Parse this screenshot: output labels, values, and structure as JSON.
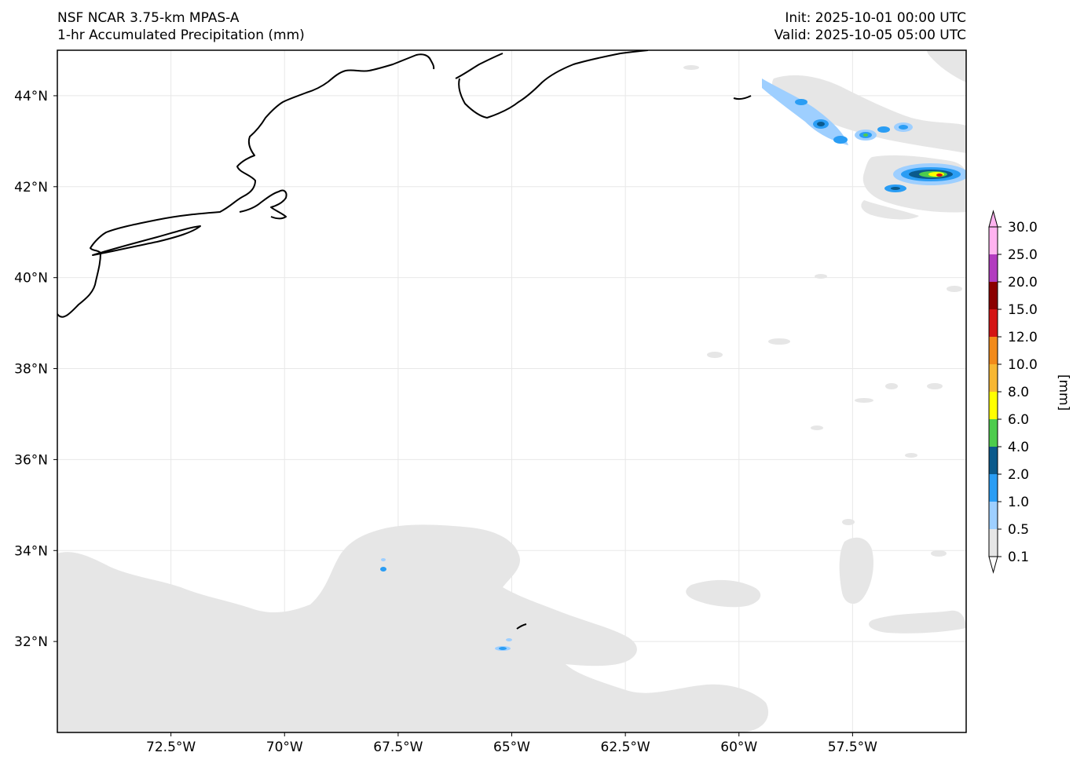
{
  "header": {
    "left_line1": "NSF NCAR 3.75-km MPAS-A",
    "left_line2": "1-hr Accumulated Precipitation (mm)",
    "right_line1": "Init: 2025-10-01 00:00 UTC",
    "right_line2": "Valid: 2025-10-05 05:00 UTC"
  },
  "map": {
    "lon_range": [
      -75.0,
      -55.0
    ],
    "lat_range": [
      30.0,
      45.0
    ],
    "lon_ticks": [
      {
        "value": -72.5,
        "label": "72.5°W"
      },
      {
        "value": -70.0,
        "label": "70°W"
      },
      {
        "value": -67.5,
        "label": "67.5°W"
      },
      {
        "value": -65.0,
        "label": "65°W"
      },
      {
        "value": -62.5,
        "label": "62.5°W"
      },
      {
        "value": -60.0,
        "label": "60°W"
      },
      {
        "value": -57.5,
        "label": "57.5°W"
      }
    ],
    "lat_ticks": [
      {
        "value": 44,
        "label": "44°N"
      },
      {
        "value": 42,
        "label": "42°N"
      },
      {
        "value": 40,
        "label": "40°N"
      },
      {
        "value": 38,
        "label": "38°N"
      },
      {
        "value": 36,
        "label": "36°N"
      },
      {
        "value": 34,
        "label": "34°N"
      },
      {
        "value": 32,
        "label": "32°N"
      }
    ],
    "gridlines": true
  },
  "colorbar": {
    "unit_label": "[mm]",
    "extend": "both",
    "levels": [
      "0.1",
      "0.5",
      "1.0",
      "2.0",
      "4.0",
      "6.0",
      "8.0",
      "10.0",
      "12.0",
      "15.0",
      "20.0",
      "25.0",
      "30.0"
    ],
    "colors": [
      "#e6e6e6",
      "#9ecfff",
      "#2a9df4",
      "#0b5a8c",
      "#4dcc4d",
      "#ffff00",
      "#f7b733",
      "#f28a1a",
      "#d41414",
      "#8b0000",
      "#b23bbf",
      "#ffb3f0"
    ]
  }
}
